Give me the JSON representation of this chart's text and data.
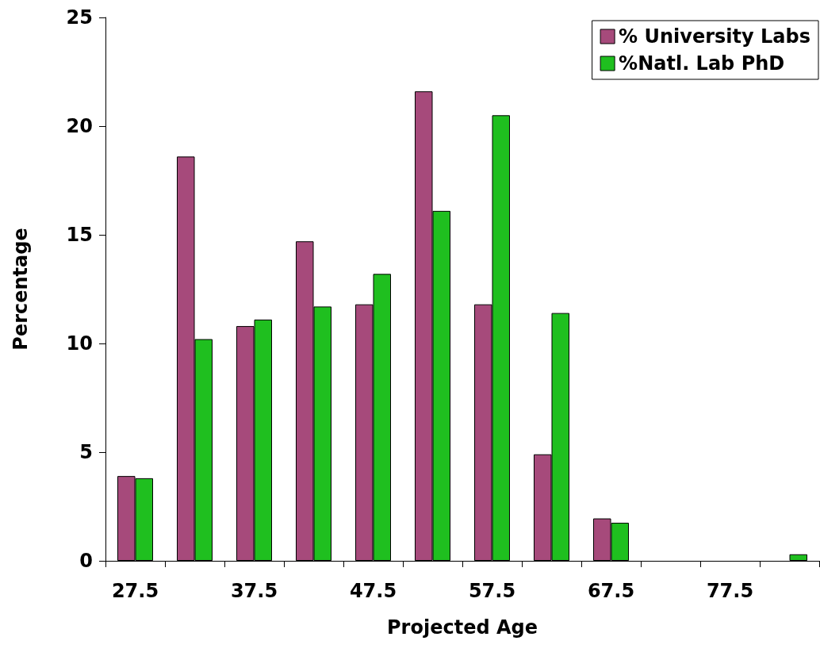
{
  "chart_data": {
    "type": "bar",
    "xlabel": "Projected Age",
    "ylabel": "Percentage",
    "categories": [
      "27.5",
      null,
      "37.5",
      null,
      "47.5",
      null,
      "57.5",
      null,
      "67.5",
      null,
      "77.5",
      null
    ],
    "series": [
      {
        "name": "% University Labs",
        "color": "#a64a7b",
        "values": [
          3.9,
          18.6,
          10.8,
          14.7,
          11.8,
          21.6,
          11.8,
          4.9,
          1.95,
          0,
          0,
          0
        ]
      },
      {
        "name": "%Natl. Lab PhD",
        "color": "#1fbf1f",
        "values": [
          3.8,
          10.2,
          11.1,
          11.7,
          13.2,
          16.1,
          20.5,
          11.4,
          1.75,
          0,
          0,
          0.3
        ]
      }
    ],
    "ylim": [
      0,
      25
    ],
    "yticks": [
      0,
      5,
      10,
      15,
      20,
      25
    ],
    "grid": false,
    "legend": "top right"
  }
}
